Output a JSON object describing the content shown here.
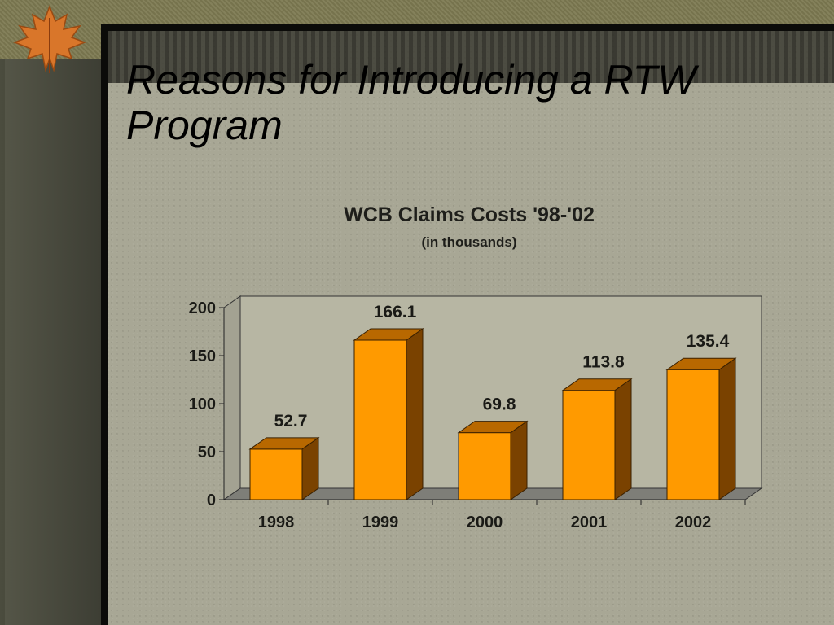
{
  "slide": {
    "title_line1": "Reasons for Introducing a RTW",
    "title_line2": "Program"
  },
  "colors": {
    "bar_front": "#ff9a00",
    "bar_side": "#7a4200",
    "bar_top": "#b86800",
    "plot_bg": "#b7b6a3",
    "floor": "#7e7e78"
  },
  "chart_data": {
    "type": "bar",
    "title": "WCB Claims Costs '98-'02",
    "subtitle": "(in thousands)",
    "categories": [
      "1998",
      "1999",
      "2000",
      "2001",
      "2002"
    ],
    "values": [
      52.7,
      166.1,
      69.8,
      113.8,
      135.4
    ],
    "value_labels": [
      "52.7",
      "166.1",
      "69.8",
      "113.8",
      "135.4"
    ],
    "yticks": [
      "0",
      "50",
      "100",
      "150",
      "200"
    ],
    "ylim": [
      0,
      200
    ],
    "xlabel": "",
    "ylabel": "",
    "grid": false,
    "style": "3d"
  }
}
